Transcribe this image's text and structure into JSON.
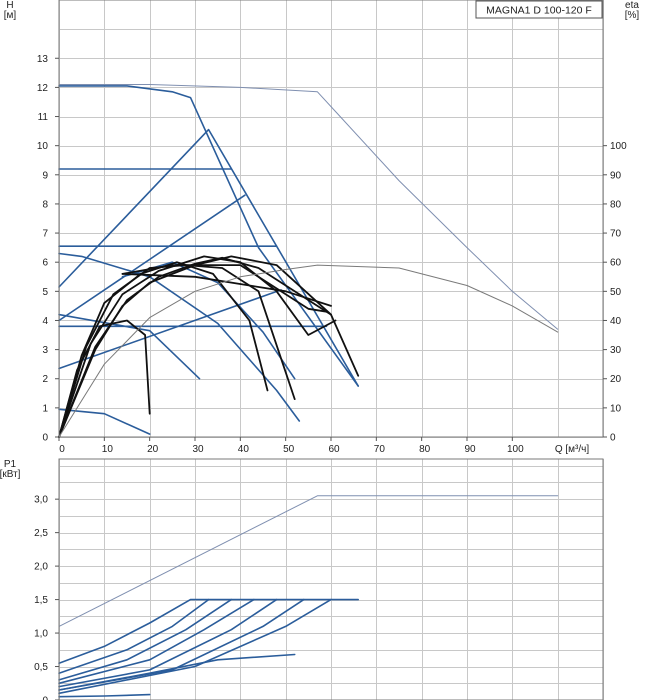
{
  "chart_data": [
    {
      "type": "line",
      "title": "MAGNA1 D 100-120 F",
      "xlabel": "Q [м³/ч]",
      "ylabel": "H\n[м]",
      "ylabel_right": "eta\n[%]",
      "xlim": [
        0,
        120
      ],
      "ylim": [
        0,
        15
      ],
      "y2lim": [
        0,
        150
      ],
      "x_ticks": [
        "0",
        "10",
        "20",
        "30",
        "40",
        "50",
        "60",
        "70",
        "80",
        "90",
        "100"
      ],
      "y_ticks": [
        "0",
        "1",
        "2",
        "3",
        "4",
        "5",
        "6",
        "7",
        "8",
        "9",
        "10",
        "11",
        "12",
        "13"
      ],
      "y2_ticks": [
        "0",
        "10",
        "20",
        "30",
        "40",
        "50",
        "60",
        "70",
        "80",
        "90",
        "100"
      ],
      "grid": true,
      "series": [
        {
          "group": "H-max (twin)",
          "color": "#7f8fb0",
          "points": [
            [
              0,
              12.1
            ],
            [
              20,
              12.1
            ],
            [
              40,
              12.0
            ],
            [
              57,
              11.85
            ],
            [
              62,
              11.0
            ],
            [
              75,
              8.8
            ],
            [
              90,
              6.5
            ],
            [
              100,
              5.0
            ],
            [
              110,
              3.7
            ]
          ]
        },
        {
          "group": "H-max",
          "color": "#2b5d9b",
          "points": [
            [
              0,
              12.05
            ],
            [
              15,
              12.05
            ],
            [
              25,
              11.85
            ],
            [
              29,
              11.65
            ],
            [
              44,
              6.5
            ],
            [
              66,
              1.75
            ]
          ]
        },
        {
          "group": "H-min",
          "color": "#2b5d9b",
          "points": [
            [
              0,
              0.95
            ],
            [
              10,
              0.8
            ],
            [
              20,
              0.1
            ]
          ]
        },
        {
          "group": "prop-pressure",
          "color": "#2b5d9b",
          "points": [
            [
              0,
              5.15
            ],
            [
              33,
              10.55
            ],
            [
              66,
              1.75
            ]
          ]
        },
        {
          "group": "prop-pressure",
          "color": "#2b5d9b",
          "points": [
            [
              0,
              4.0
            ],
            [
              41,
              8.3
            ]
          ]
        },
        {
          "group": "prop-pressure",
          "color": "#2b5d9b",
          "points": [
            [
              0,
              2.35
            ],
            [
              49,
              5.05
            ]
          ]
        },
        {
          "group": "const-pressure",
          "color": "#2b5d9b",
          "points": [
            [
              0,
              9.2
            ],
            [
              38,
              9.2
            ]
          ]
        },
        {
          "group": "const-pressure",
          "color": "#2b5d9b",
          "points": [
            [
              0,
              6.55
            ],
            [
              48,
              6.55
            ]
          ]
        },
        {
          "group": "const-pressure",
          "color": "#2b5d9b",
          "points": [
            [
              0,
              3.8
            ],
            [
              59,
              3.8
            ]
          ]
        },
        {
          "group": "const-curve",
          "color": "#2b5d9b",
          "points": [
            [
              0,
              6.3
            ],
            [
              5,
              6.2
            ],
            [
              20,
              5.5
            ],
            [
              35,
              3.9
            ],
            [
              48,
              1.6
            ],
            [
              53,
              0.55
            ]
          ]
        },
        {
          "group": "const-curve",
          "color": "#2b5d9b",
          "points": [
            [
              0,
              4.2
            ],
            [
              20,
              3.65
            ],
            [
              28,
              2.45
            ],
            [
              31,
              2.0
            ]
          ]
        },
        {
          "group": "const-curve",
          "color": "#2b5d9b",
          "points": [
            [
              14,
              5.5
            ],
            [
              25,
              6.0
            ],
            [
              35,
              5.3
            ],
            [
              45,
              3.6
            ],
            [
              52,
              2.0
            ]
          ]
        },
        {
          "group": "eta",
          "color": "#111111",
          "points": [
            [
              0,
              0
            ],
            [
              8,
              3.0
            ],
            [
              14,
              4.5
            ],
            [
              20,
              5.3
            ],
            [
              30,
              5.9
            ],
            [
              38,
              6.2
            ],
            [
              48,
              5.9
            ],
            [
              60,
              4.2
            ],
            [
              66,
              2.1
            ]
          ]
        },
        {
          "group": "eta",
          "color": "#111111",
          "points": [
            [
              0,
              0
            ],
            [
              8,
              3.1
            ],
            [
              15,
              4.7
            ],
            [
              22,
              5.5
            ],
            [
              30,
              5.95
            ],
            [
              36,
              6.15
            ],
            [
              44,
              5.8
            ],
            [
              50,
              5.2
            ],
            [
              60,
              4.2
            ]
          ]
        },
        {
          "group": "eta",
          "color": "#111111",
          "points": [
            [
              0,
              0
            ],
            [
              7,
              3.2
            ],
            [
              14,
              4.9
            ],
            [
              22,
              5.7
            ],
            [
              32,
              6.2
            ],
            [
              40,
              6.0
            ],
            [
              48,
              5.0
            ],
            [
              55,
              3.5
            ],
            [
              61,
              4.0
            ]
          ]
        },
        {
          "group": "eta",
          "color": "#111111",
          "points": [
            [
              0,
              0
            ],
            [
              6,
              3.1
            ],
            [
              12,
              4.9
            ],
            [
              20,
              5.8
            ],
            [
              28,
              5.9
            ],
            [
              36,
              5.8
            ],
            [
              44,
              5.0
            ],
            [
              52,
              1.3
            ]
          ]
        },
        {
          "group": "eta",
          "color": "#111111",
          "points": [
            [
              0,
              0
            ],
            [
              5,
              2.8
            ],
            [
              10,
              4.6
            ],
            [
              18,
              5.6
            ],
            [
              26,
              6.0
            ],
            [
              34,
              5.6
            ],
            [
              42,
              4.0
            ],
            [
              46,
              1.6
            ]
          ]
        },
        {
          "group": "eta",
          "color": "#111111",
          "points": [
            [
              0,
              0
            ],
            [
              4,
              2.3
            ],
            [
              9,
              3.8
            ],
            [
              15,
              4.0
            ],
            [
              19,
              3.5
            ],
            [
              20,
              0.8
            ]
          ]
        },
        {
          "group": "eta",
          "color": "#111111",
          "points": [
            [
              14,
              5.6
            ],
            [
              30,
              5.5
            ],
            [
              50,
              5.0
            ],
            [
              60,
              4.5
            ]
          ]
        },
        {
          "group": "eta",
          "color": "#111111",
          "points": [
            [
              14,
              5.6
            ],
            [
              25,
              5.9
            ],
            [
              40,
              5.9
            ],
            [
              55,
              4.4
            ],
            [
              59,
              4.3
            ]
          ]
        },
        {
          "group": "eta-max",
          "color": "#7a7a7a",
          "points": [
            [
              0,
              0
            ],
            [
              10,
              2.5
            ],
            [
              20,
              4.1
            ],
            [
              30,
              5.0
            ],
            [
              40,
              5.5
            ],
            [
              50,
              5.75
            ],
            [
              57,
              5.9
            ],
            [
              75,
              5.8
            ],
            [
              90,
              5.2
            ],
            [
              100,
              4.5
            ],
            [
              110,
              3.6
            ]
          ]
        }
      ]
    },
    {
      "type": "line",
      "title": "",
      "xlabel": "",
      "ylabel": "P1\n[кВт]",
      "xlim": [
        0,
        120
      ],
      "ylim": [
        0,
        3.6
      ],
      "y_ticks": [
        "0",
        "0,5",
        "1,0",
        "1,5",
        "2,0",
        "2,5",
        "3,0"
      ],
      "grid": true,
      "series": [
        {
          "group": "P1-max (twin)",
          "color": "#7f8fb0",
          "points": [
            [
              0,
              1.1
            ],
            [
              57,
              3.05
            ],
            [
              110,
              3.05
            ]
          ]
        },
        {
          "group": "P1",
          "color": "#2b5d9b",
          "points": [
            [
              0,
              0.55
            ],
            [
              10,
              0.8
            ],
            [
              20,
              1.15
            ],
            [
              29,
              1.5
            ],
            [
              66,
              1.5
            ]
          ]
        },
        {
          "group": "P1",
          "color": "#2b5d9b",
          "points": [
            [
              0,
              0.4
            ],
            [
              15,
              0.75
            ],
            [
              25,
              1.1
            ],
            [
              33,
              1.5
            ]
          ]
        },
        {
          "group": "P1",
          "color": "#2b5d9b",
          "points": [
            [
              0,
              0.3
            ],
            [
              15,
              0.6
            ],
            [
              28,
              1.05
            ],
            [
              38,
              1.5
            ]
          ]
        },
        {
          "group": "P1",
          "color": "#2b5d9b",
          "points": [
            [
              0,
              0.25
            ],
            [
              20,
              0.6
            ],
            [
              32,
              1.05
            ],
            [
              43,
              1.5
            ]
          ]
        },
        {
          "group": "P1",
          "color": "#2b5d9b",
          "points": [
            [
              0,
              0.2
            ],
            [
              20,
              0.45
            ],
            [
              38,
              1.05
            ],
            [
              48,
              1.5
            ]
          ]
        },
        {
          "group": "P1",
          "color": "#2b5d9b",
          "points": [
            [
              0,
              0.15
            ],
            [
              25,
              0.45
            ],
            [
              45,
              1.1
            ],
            [
              54,
              1.5
            ]
          ]
        },
        {
          "group": "P1",
          "color": "#2b5d9b",
          "points": [
            [
              0,
              0.1
            ],
            [
              30,
              0.5
            ],
            [
              50,
              1.1
            ],
            [
              60,
              1.5
            ]
          ]
        },
        {
          "group": "P1",
          "color": "#2b5d9b",
          "points": [
            [
              0,
              0.15
            ],
            [
              20,
              0.4
            ],
            [
              35,
              0.6
            ],
            [
              52,
              0.68
            ]
          ]
        },
        {
          "group": "P1",
          "color": "#2b5d9b",
          "points": [
            [
              0,
              0.05
            ],
            [
              10,
              0.06
            ],
            [
              20,
              0.08
            ]
          ]
        }
      ]
    }
  ]
}
